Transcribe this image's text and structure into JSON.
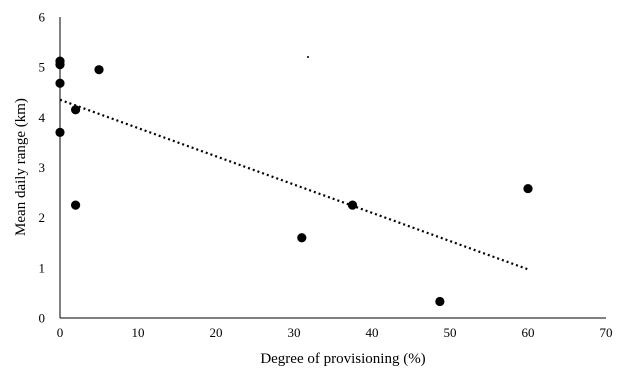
{
  "chart_data": {
    "type": "scatter",
    "title": "",
    "xlabel": "Degree of provisioning (%)",
    "ylabel": "Mean daily range (km)",
    "xlim": [
      0,
      70
    ],
    "ylim": [
      0,
      6
    ],
    "xticks": [
      0,
      10,
      20,
      30,
      40,
      50,
      60,
      70
    ],
    "yticks": [
      0,
      1,
      2,
      3,
      4,
      5,
      6
    ],
    "grid": false,
    "legend": "none",
    "series": [
      {
        "points": [
          {
            "x": 0,
            "y": 5.12
          },
          {
            "x": 0,
            "y": 5.05
          },
          {
            "x": 0,
            "y": 4.68
          },
          {
            "x": 0,
            "y": 3.7
          },
          {
            "x": 2,
            "y": 4.15
          },
          {
            "x": 2,
            "y": 2.25
          },
          {
            "x": 5,
            "y": 4.95
          },
          {
            "x": 31,
            "y": 1.6
          },
          {
            "x": 37.5,
            "y": 2.25
          },
          {
            "x": 48.7,
            "y": 0.33
          },
          {
            "x": 60,
            "y": 2.58
          }
        ]
      }
    ],
    "trendline": {
      "style": "dotted",
      "x_start": 0,
      "y_start": 4.35,
      "x_end": 60,
      "y_end": 0.97
    }
  }
}
